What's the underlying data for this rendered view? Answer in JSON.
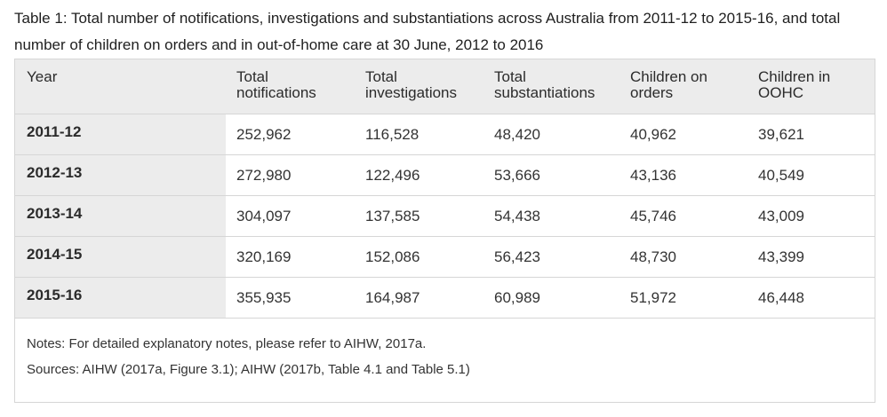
{
  "caption": "Table 1: Total number of notifications, investigations and substantiations across Australia from 2011-12 to 2015-16, and total number of children on orders and in out-of-home care at 30 June, 2012 to 2016",
  "table": {
    "headers": [
      {
        "line1": "Year",
        "line2": ""
      },
      {
        "line1": "Total",
        "line2": "notifications"
      },
      {
        "line1": "Total",
        "line2": "investigations"
      },
      {
        "line1": "Total",
        "line2": "substantiations"
      },
      {
        "line1": "Children on",
        "line2": "orders"
      },
      {
        "line1": "Children in",
        "line2": "OOHC"
      }
    ],
    "rows": [
      {
        "year": "2011-12",
        "values": [
          "252,962",
          "116,528",
          "48,420",
          "40,962",
          "39,621"
        ]
      },
      {
        "year": "2012-13",
        "values": [
          "272,980",
          "122,496",
          "53,666",
          "43,136",
          "40,549"
        ]
      },
      {
        "year": "2013-14",
        "values": [
          "304,097",
          "137,585",
          "54,438",
          "45,746",
          "43,009"
        ]
      },
      {
        "year": "2014-15",
        "values": [
          "320,169",
          "152,086",
          "56,423",
          "48,730",
          "43,399"
        ]
      },
      {
        "year": "2015-16",
        "values": [
          "355,935",
          "164,987",
          "60,989",
          "51,972",
          "46,448"
        ]
      }
    ]
  },
  "notes": {
    "line1": "Notes: For detailed explanatory notes, please refer to AIHW, 2017a.",
    "line2": "Sources: AIHW (2017a, Figure 3.1); AIHW (2017b, Table 4.1 and Table 5.1)"
  }
}
